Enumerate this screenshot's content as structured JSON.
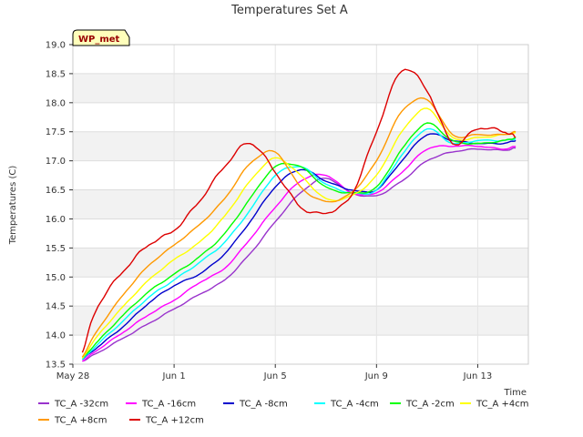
{
  "chart_data": {
    "type": "line",
    "title": "Temperatures Set A",
    "xlabel": "Time",
    "ylabel": "Temperatures (C)",
    "badge": "WP_met",
    "x_start": "2024-05-28",
    "x_end": "2024-06-15",
    "xticks": [
      {
        "date": "2024-05-28",
        "label": "May 28"
      },
      {
        "date": "2024-06-01",
        "label": "Jun 1"
      },
      {
        "date": "2024-06-05",
        "label": "Jun 5"
      },
      {
        "date": "2024-06-09",
        "label": "Jun 9"
      },
      {
        "date": "2024-06-13",
        "label": "Jun 13"
      }
    ],
    "ylim": [
      13.5,
      19.0
    ],
    "yticks": [
      "13.5",
      "14.0",
      "14.5",
      "15.0",
      "15.5",
      "16.0",
      "16.5",
      "17.0",
      "17.5",
      "18.0",
      "18.5",
      "19.0"
    ],
    "grid": true,
    "band_shading": true,
    "legend_position": "bottom",
    "x": [
      "2024-05-28T09:00",
      "2024-05-29",
      "2024-05-30",
      "2024-05-31",
      "2024-06-01",
      "2024-06-02",
      "2024-06-03",
      "2024-06-04",
      "2024-06-05",
      "2024-06-06",
      "2024-06-07",
      "2024-06-08",
      "2024-06-09",
      "2024-06-10",
      "2024-06-11",
      "2024-06-12",
      "2024-06-13",
      "2024-06-14",
      "2024-06-14T12:00"
    ],
    "series": [
      {
        "name": "TC_A -32cm",
        "color": "#9933cc",
        "values": [
          13.55,
          13.7,
          13.95,
          14.2,
          14.45,
          14.7,
          14.95,
          15.4,
          15.95,
          16.45,
          16.7,
          16.45,
          16.4,
          16.65,
          17.0,
          17.15,
          17.2,
          17.18,
          17.22
        ]
      },
      {
        "name": "TC_A -16cm",
        "color": "#ff00ff",
        "values": [
          13.55,
          13.75,
          14.05,
          14.35,
          14.6,
          14.9,
          15.15,
          15.65,
          16.2,
          16.65,
          16.75,
          16.45,
          16.45,
          16.8,
          17.2,
          17.25,
          17.25,
          17.2,
          17.25
        ]
      },
      {
        "name": "TC_A -8cm",
        "color": "#0000cc",
        "values": [
          13.58,
          13.8,
          14.15,
          14.55,
          14.85,
          15.05,
          15.4,
          15.95,
          16.55,
          16.85,
          16.65,
          16.5,
          16.5,
          17.0,
          17.45,
          17.35,
          17.3,
          17.3,
          17.35
        ]
      },
      {
        "name": "TC_A -4cm",
        "color": "#00ffff",
        "values": [
          13.58,
          13.85,
          14.25,
          14.65,
          14.95,
          15.25,
          15.6,
          16.15,
          16.75,
          16.9,
          16.6,
          16.45,
          16.5,
          17.1,
          17.55,
          17.3,
          17.35,
          17.35,
          17.38
        ]
      },
      {
        "name": "TC_A -2cm",
        "color": "#00ff00",
        "values": [
          13.6,
          13.9,
          14.35,
          14.75,
          15.05,
          15.35,
          15.75,
          16.35,
          16.9,
          16.9,
          16.55,
          16.45,
          16.55,
          17.2,
          17.65,
          17.35,
          17.3,
          17.35,
          17.4
        ]
      },
      {
        "name": "TC_A +4cm",
        "color": "#ffff00",
        "values": [
          13.6,
          14.0,
          14.5,
          14.95,
          15.3,
          15.6,
          16.05,
          16.65,
          17.05,
          16.75,
          16.35,
          16.4,
          16.75,
          17.5,
          17.9,
          17.4,
          17.4,
          17.45,
          17.48
        ]
      },
      {
        "name": "TC_A +8cm",
        "color": "#ff9900",
        "values": [
          13.62,
          14.1,
          14.7,
          15.2,
          15.55,
          15.9,
          16.35,
          16.95,
          17.15,
          16.55,
          16.3,
          16.45,
          17.0,
          17.85,
          18.05,
          17.45,
          17.45,
          17.45,
          17.5
        ]
      },
      {
        "name": "TC_A +12cm",
        "color": "#dd0000",
        "values": [
          13.7,
          14.5,
          15.1,
          15.55,
          15.8,
          16.3,
          16.9,
          17.3,
          16.8,
          16.2,
          16.1,
          16.4,
          17.5,
          18.55,
          18.2,
          17.3,
          17.55,
          17.5,
          17.4
        ]
      }
    ]
  }
}
